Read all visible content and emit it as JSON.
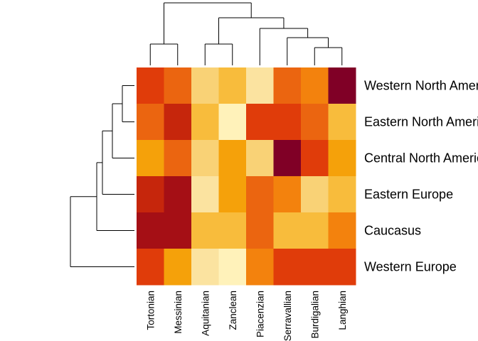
{
  "chart_data": {
    "type": "heatmap",
    "title": "",
    "xlabel": "",
    "ylabel": "",
    "rows": [
      "Western North America",
      "Eastern North America",
      "Central North America",
      "Eastern Europe",
      "Caucasus",
      "Western Europe"
    ],
    "columns": [
      "Tortonian",
      "Messinian",
      "Aquitanian",
      "Zanclean",
      "Piacenzian",
      "Serravallian",
      "Burdigalian",
      "Langhian"
    ],
    "values": [
      [
        3,
        4,
        8,
        7,
        9,
        4,
        5,
        0
      ],
      [
        4,
        2,
        7,
        10,
        3,
        3,
        4,
        7
      ],
      [
        6,
        4,
        8,
        6,
        8,
        0,
        3,
        6
      ],
      [
        2,
        1,
        9,
        6,
        4,
        5,
        8,
        7
      ],
      [
        1,
        1,
        7,
        7,
        4,
        7,
        7,
        5
      ],
      [
        3,
        6,
        9,
        10,
        5,
        3,
        3,
        3
      ]
    ],
    "color_scale": [
      "#800026",
      "#A50F15",
      "#C6260C",
      "#E03C0A",
      "#EB6510",
      "#F3820D",
      "#F5A10A",
      "#F8BC3C",
      "#F9D276",
      "#FBE3A0",
      "#FFF2BA",
      "#FFFFCC"
    ],
    "row_dendrogram": true,
    "column_dendrogram": true,
    "legend": "none",
    "grid": false
  }
}
